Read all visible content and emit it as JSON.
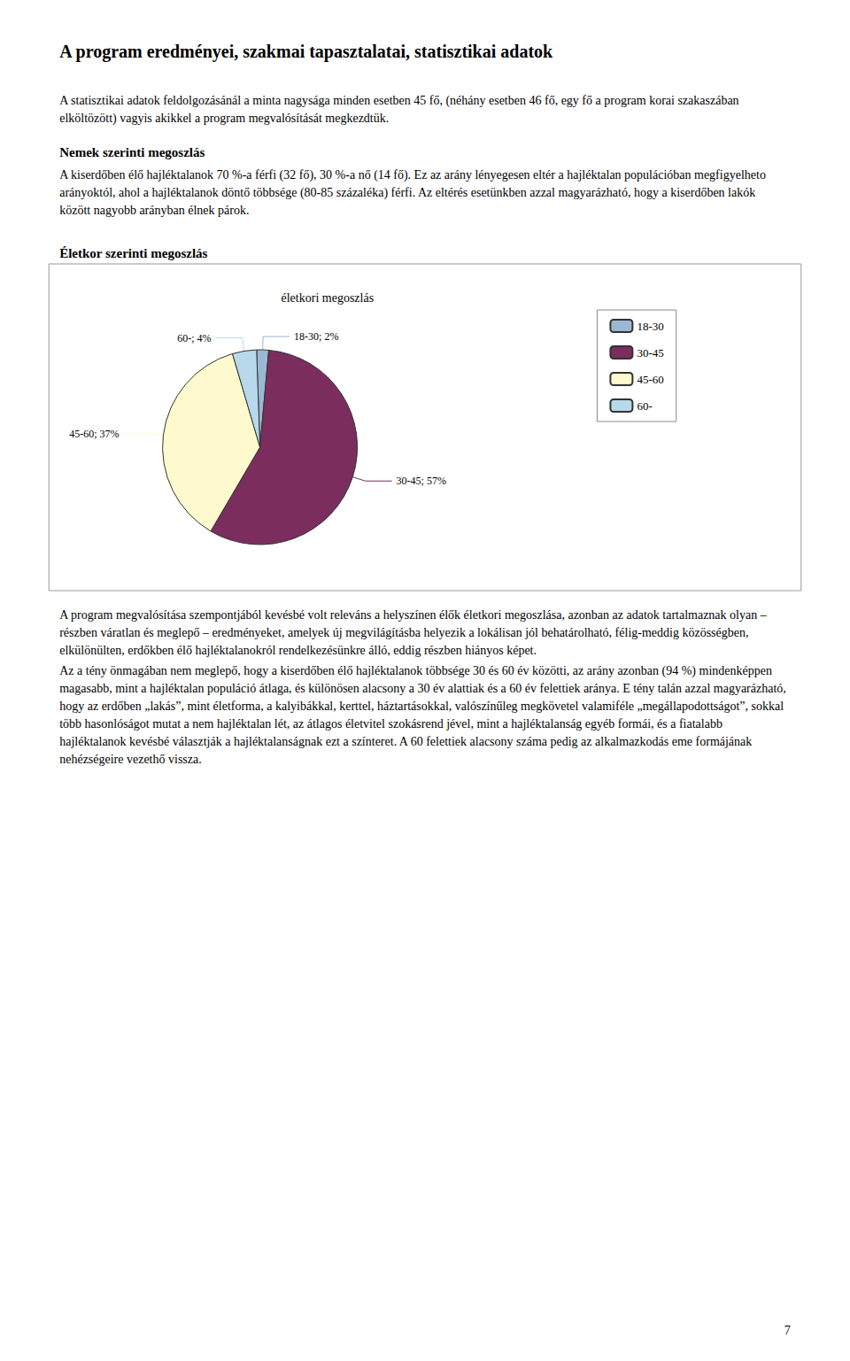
{
  "chart_data": {
    "type": "pie",
    "title": "életkori megoszlás",
    "categories": [
      "18-30",
      "30-45",
      "45-60",
      "60-"
    ],
    "values": [
      2,
      57,
      37,
      4
    ],
    "value_labels": [
      "18-30; 2%",
      "30-45; 57%",
      "45-60; 37%",
      "60-; 4%"
    ],
    "colors": [
      "#9BB7D4",
      "#7B2D5E",
      "#FFFACD",
      "#B8D9EC"
    ],
    "data_labels": true,
    "legend": "right",
    "annotations": [
      "A program eredményei, szakmai tapasztalatai, statisztikai adatok",
      "A statisztikai adatok feldolgozásánál a minta nagysága minden esetben 45 fő, (néhány esetben 46 fő, egy fő a program korai szakaszában elköltözött) vagyis akikkel a program megvalósítását megkezdtük.",
      "Nemek szerinti megoszlás",
      "A kiserdőben élő hajléktalanok 70 %-a férfi (32 fő), 30 %-a nő (14 fő). Ez az arány lényegesen eltér a hajléktalan populációban megfigyelheto arányoktól, ahol a hajléktalanok döntő többsége (80-85 százaléka) férfi. Az eltérés esetünkben azzal magyarázható, hogy a kiserdőben lakók között nagyobb arányban élnek párok.",
      "Életkor szerinti megoszlás",
      "A program megvalósítása szempontjából kevésbé volt releváns a helyszínen élők életkori megoszlása, azonban az adatok tartalmaznak olyan – részben váratlan és meglepő – eredményeket, amelyek új megvilágításba helyezik a lokálisan jól behatárolható, félig-meddig közösségben, elkülönülten, erdőkben élő hajléktalanokról rendelkezésünkre álló, eddig részben hiányos képet.",
      "Az a tény önmagában nem meglepő, hogy a kiserdőben élő hajléktalanok többsége 30 és 60 év közötti, az arány azonban (94 %) mindenképpen magasabb, mint a hajléktalan populáció átlaga, és különösen alacsony a 30 év alattiak és a 60 év felettiek aránya. E tény talán azzal magyarázható, hogy az erdőben „lakás”, mint életforma, a kalyibákkal, kerttel, háztartásokkal, valószínűleg megkövetel valamiféle „megállapodottságot”, sokkal több hasonlóságot mutat a nem hajléktalan lét, az átlagos életvitel szokásrend jével, mint a hajléktalanság egyéb formái, és a fiatalabb hajléktalanok kevésbé választják a hajléktalanságnak ezt a színteret. A 60 felettiek alacsony száma pedig az alkalmazkodás eme formájának nehézségeire vezethő vissza.",
      "7"
    ]
  }
}
